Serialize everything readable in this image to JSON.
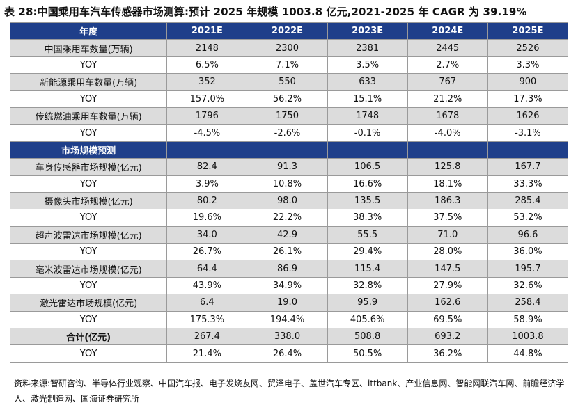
{
  "title": "表 28:中国乘用车汽车传感器市场测算:预计 2025 年规模 1003.8 亿元,2021-2025 年 CAGR 为 39.19%",
  "header": [
    "年度",
    "2021E",
    "2022E",
    "2023E",
    "2024E",
    "2025E"
  ],
  "rows_top": [
    {
      "label": "中国乘用车数量(万辆)",
      "values": [
        "2148",
        "2300",
        "2381",
        "2445",
        "2526"
      ],
      "shade": true
    },
    {
      "label": "YOY",
      "values": [
        "6.5%",
        "7.1%",
        "3.5%",
        "2.7%",
        "3.3%"
      ],
      "shade": false
    },
    {
      "label": "新能源乘用车数量(万辆)",
      "values": [
        "352",
        "550",
        "633",
        "767",
        "900"
      ],
      "shade": true
    },
    {
      "label": "YOY",
      "values": [
        "157.0%",
        "56.2%",
        "15.1%",
        "21.2%",
        "17.3%"
      ],
      "shade": false
    },
    {
      "label": "传统燃油乘用车数量(万辆)",
      "values": [
        "1796",
        "1750",
        "1748",
        "1678",
        "1626"
      ],
      "shade": true
    },
    {
      "label": "YOY",
      "values": [
        "-4.5%",
        "-2.6%",
        "-0.1%",
        "-4.0%",
        "-3.1%"
      ],
      "shade": false
    }
  ],
  "section_label": "市场规模预测",
  "rows_bottom": [
    {
      "label": "车身传感器市场规模(亿元)",
      "values": [
        "82.4",
        "91.3",
        "106.5",
        "125.8",
        "167.7"
      ],
      "shade": true
    },
    {
      "label": "YOY",
      "values": [
        "3.9%",
        "10.8%",
        "16.6%",
        "18.1%",
        "33.3%"
      ],
      "shade": false
    },
    {
      "label": "摄像头市场规模(亿元)",
      "values": [
        "80.2",
        "98.0",
        "135.5",
        "186.3",
        "285.4"
      ],
      "shade": true
    },
    {
      "label": "YOY",
      "values": [
        "19.6%",
        "22.2%",
        "38.3%",
        "37.5%",
        "53.2%"
      ],
      "shade": false
    },
    {
      "label": "超声波雷达市场规模(亿元)",
      "values": [
        "34.0",
        "42.9",
        "55.5",
        "71.0",
        "96.6"
      ],
      "shade": true
    },
    {
      "label": "YOY",
      "values": [
        "26.7%",
        "26.1%",
        "29.4%",
        "28.0%",
        "36.0%"
      ],
      "shade": false
    },
    {
      "label": "毫米波雷达市场规模(亿元)",
      "values": [
        "64.4",
        "86.9",
        "115.4",
        "147.5",
        "195.7"
      ],
      "shade": true
    },
    {
      "label": "YOY",
      "values": [
        "43.9%",
        "34.9%",
        "32.8%",
        "27.9%",
        "32.6%"
      ],
      "shade": false
    },
    {
      "label": "激光雷达市场规模(亿元)",
      "values": [
        "6.4",
        "19.0",
        "95.9",
        "162.6",
        "258.4"
      ],
      "shade": true
    },
    {
      "label": "YOY",
      "values": [
        "175.3%",
        "194.4%",
        "405.6%",
        "69.5%",
        "58.9%"
      ],
      "shade": false
    }
  ],
  "total_row": {
    "label": "合计(亿元)",
    "values": [
      "267.4",
      "338.0",
      "508.8",
      "693.2",
      "1003.8"
    ]
  },
  "total_yoy": {
    "label": "YOY",
    "values": [
      "21.4%",
      "26.4%",
      "50.5%",
      "36.2%",
      "44.8%"
    ]
  },
  "source": "资料来源:智研咨询、半导体行业观察、中国汽车报、电子发烧友网、贸泽电子、盖世汽车专区、ittbank、产业信息网、智能网联汽车网、前瞻经济学人、激光制造网、国海证券研究所"
}
